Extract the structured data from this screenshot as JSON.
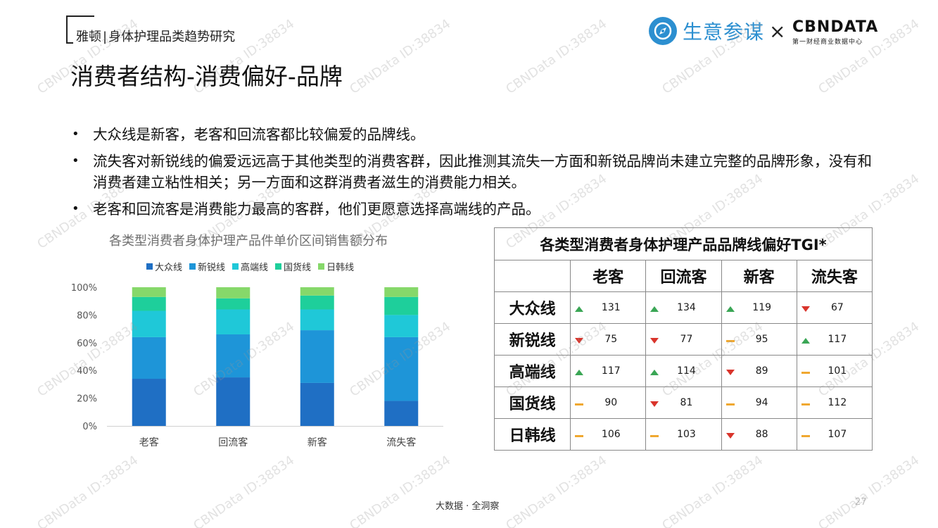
{
  "header": {
    "brand": "雅顿",
    "separator": "|",
    "subtitle": "身体护理品类趋势研究",
    "title": "消费者结构-消费偏好-品牌"
  },
  "logos": {
    "logo1_text": "生意参谋",
    "times": "×",
    "logo2_main": "CBNDATA",
    "logo2_sub": "第一财经商业数据中心"
  },
  "bullets": [
    "大众线是新客，老客和回流客都比较偏爱的品牌线。",
    "流失客对新锐线的偏爱远远高于其他类型的消费客群，因此推测其流失一方面和新锐品牌尚未建立完整的品牌形象，没有和消费者建立粘性相关；另一方面和这群消费者滋生的消费能力相关。",
    "老客和回流客是消费能力最高的客群，他们更愿意选择高端线的产品。"
  ],
  "chart_data": {
    "type": "bar",
    "stacked": true,
    "percent": true,
    "title": "各类型消费者身体护理产品件单价区间销售额分布",
    "categories": [
      "老客",
      "回流客",
      "新客",
      "流失客"
    ],
    "series": [
      {
        "name": "大众线",
        "color": "#1f6fc4",
        "values": [
          34,
          35,
          31,
          18
        ]
      },
      {
        "name": "新锐线",
        "color": "#1e95d8",
        "values": [
          30,
          31,
          38,
          46
        ]
      },
      {
        "name": "高端线",
        "color": "#1fc8d8",
        "values": [
          19,
          18,
          15,
          16
        ]
      },
      {
        "name": "国货线",
        "color": "#1ecf9b",
        "values": [
          10,
          8,
          10,
          13
        ]
      },
      {
        "name": "日韩线",
        "color": "#86d86a",
        "values": [
          7,
          8,
          6,
          7
        ]
      }
    ],
    "ylim": [
      0,
      100
    ],
    "yticks": [
      "0%",
      "20%",
      "40%",
      "60%",
      "80%",
      "100%"
    ],
    "legend": "top",
    "grid": false
  },
  "table": {
    "caption": "各类型消费者身体护理产品品牌线偏好TGI*",
    "columns": [
      "老客",
      "回流客",
      "新客",
      "流失客"
    ],
    "rows": [
      {
        "label": "大众线",
        "cells": [
          {
            "v": "131",
            "t": "up"
          },
          {
            "v": "134",
            "t": "up"
          },
          {
            "v": "119",
            "t": "up"
          },
          {
            "v": "67",
            "t": "down"
          }
        ]
      },
      {
        "label": "新锐线",
        "cells": [
          {
            "v": "75",
            "t": "down"
          },
          {
            "v": "77",
            "t": "down"
          },
          {
            "v": "95",
            "t": "flat"
          },
          {
            "v": "117",
            "t": "up"
          }
        ]
      },
      {
        "label": "高端线",
        "cells": [
          {
            "v": "117",
            "t": "up"
          },
          {
            "v": "114",
            "t": "up"
          },
          {
            "v": "89",
            "t": "down"
          },
          {
            "v": "101",
            "t": "flat"
          }
        ]
      },
      {
        "label": "国货线",
        "cells": [
          {
            "v": "90",
            "t": "flat"
          },
          {
            "v": "81",
            "t": "down"
          },
          {
            "v": "94",
            "t": "flat"
          },
          {
            "v": "112",
            "t": "flat"
          }
        ]
      },
      {
        "label": "日韩线",
        "cells": [
          {
            "v": "106",
            "t": "flat"
          },
          {
            "v": "103",
            "t": "flat"
          },
          {
            "v": "88",
            "t": "down"
          },
          {
            "v": "107",
            "t": "flat"
          }
        ]
      }
    ],
    "indicator_colors": {
      "up": "#3aa655",
      "down": "#d9342b",
      "flat": "#f0a830"
    }
  },
  "footer": {
    "text": "大数据 · 全洞察",
    "page": "27"
  },
  "watermark": "CBNData ID:38834"
}
